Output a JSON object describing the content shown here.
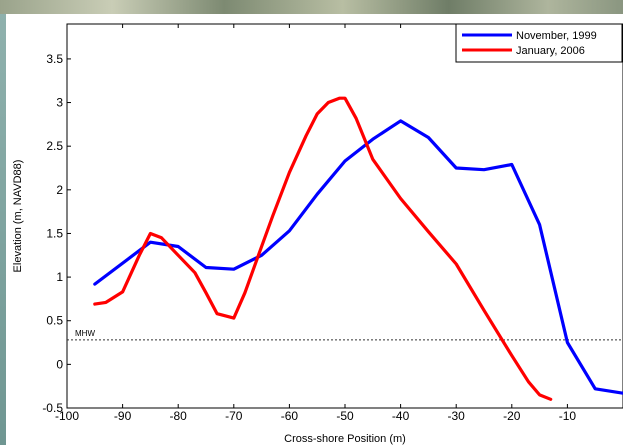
{
  "chart_data": {
    "type": "line",
    "title": "",
    "xlabel": "Cross-shore Position (m)",
    "ylabel": "Elevation (m, NAVD88)",
    "xlim": [
      -100,
      0
    ],
    "ylim": [
      -0.5,
      3.9
    ],
    "x_ticks": [
      -100,
      -90,
      -80,
      -70,
      -60,
      -50,
      -40,
      -30,
      -20,
      -10
    ],
    "y_ticks": [
      -0.5,
      0,
      0.5,
      1,
      1.5,
      2,
      2.5,
      3,
      3.5
    ],
    "grid": false,
    "legend_position": "top-right",
    "series": [
      {
        "name": "November, 1999",
        "color": "#0000ff",
        "x": [
          -95,
          -85,
          -80,
          -75,
          -70,
          -65,
          -60,
          -55,
          -50,
          -45,
          -40,
          -35,
          -30,
          -25,
          -20,
          -15,
          -10,
          -5,
          0
        ],
        "y": [
          0.92,
          1.4,
          1.35,
          1.11,
          1.09,
          1.25,
          1.53,
          1.95,
          2.33,
          2.58,
          2.79,
          2.6,
          2.25,
          2.23,
          2.29,
          1.6,
          0.25,
          -0.28,
          -0.33
        ]
      },
      {
        "name": "January, 2006",
        "color": "#ff0000",
        "x": [
          -95,
          -93,
          -90,
          -87,
          -85,
          -83,
          -80,
          -77,
          -75,
          -73,
          -70,
          -68,
          -65,
          -63,
          -60,
          -57,
          -55,
          -53,
          -51,
          -50,
          -48,
          -45,
          -40,
          -35,
          -30,
          -25,
          -20,
          -17,
          -15,
          -13
        ],
        "y": [
          0.69,
          0.71,
          0.83,
          1.25,
          1.5,
          1.45,
          1.25,
          1.05,
          0.82,
          0.58,
          0.53,
          0.82,
          1.35,
          1.7,
          2.2,
          2.62,
          2.87,
          3.0,
          3.05,
          3.05,
          2.82,
          2.35,
          1.9,
          1.52,
          1.15,
          0.62,
          0.1,
          -0.2,
          -0.35,
          -0.4
        ]
      }
    ],
    "reference_line": {
      "label": "MHW",
      "y": 0.28
    }
  }
}
